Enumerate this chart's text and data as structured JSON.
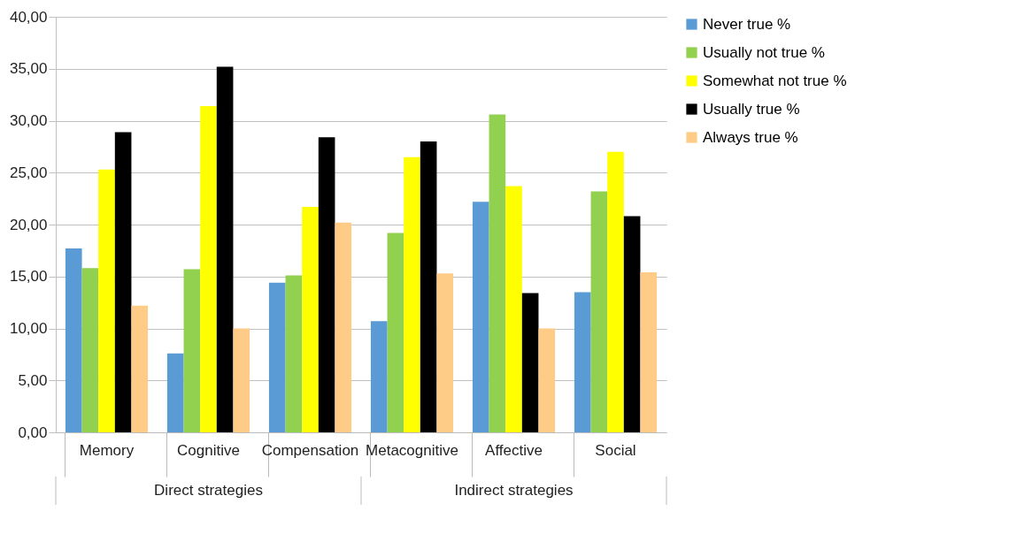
{
  "chart_data": {
    "type": "bar",
    "categories": [
      "Memory",
      "Cognitive",
      "Compensation",
      "Metacognitive",
      "Affective",
      "Social"
    ],
    "series": [
      {
        "name": "Never true  %",
        "color": "#5b9bd5",
        "values": [
          17.7,
          7.6,
          14.4,
          10.7,
          22.2,
          13.5
        ]
      },
      {
        "name": "Usually not true %",
        "color": "#92d050",
        "values": [
          15.8,
          15.7,
          15.1,
          19.2,
          30.6,
          23.2
        ]
      },
      {
        "name": "Somewhat not true %",
        "color": "#ffff00",
        "values": [
          25.3,
          31.4,
          21.7,
          26.5,
          23.7,
          27.0
        ]
      },
      {
        "name": "Usually true %",
        "color": "#000000",
        "values": [
          28.9,
          35.2,
          28.4,
          28.0,
          13.4,
          20.8
        ]
      },
      {
        "name": "Always true %",
        "color": "#ffcc88",
        "values": [
          12.2,
          10.0,
          20.2,
          15.3,
          10.0,
          15.4
        ]
      }
    ],
    "ylim": [
      0,
      40
    ],
    "yticks": [
      {
        "value": 0,
        "label": "0,00"
      },
      {
        "value": 5,
        "label": "5,00"
      },
      {
        "value": 10,
        "label": "10,00"
      },
      {
        "value": 15,
        "label": "15,00"
      },
      {
        "value": 20,
        "label": "20,00"
      },
      {
        "value": 25,
        "label": "25,00"
      },
      {
        "value": 30,
        "label": "30,00"
      },
      {
        "value": 35,
        "label": "35,00"
      },
      {
        "value": 40,
        "label": "40,00"
      }
    ],
    "annotations": [
      "Direct strategies",
      "Indirect strategies"
    ],
    "grid": "y",
    "legend": "right"
  }
}
